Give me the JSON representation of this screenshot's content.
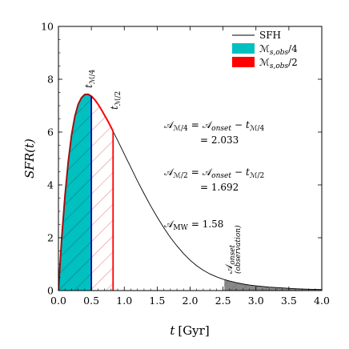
{
  "chart_data": {
    "type": "line",
    "xlabel_math": "t",
    "xlabel_unit": "[Gyr]",
    "ylabel": "SFR(t)",
    "xlim": [
      0.0,
      4.0
    ],
    "ylim": [
      0,
      10
    ],
    "x_ticks": [
      "0.0",
      "0.5",
      "1.0",
      "1.5",
      "2.0",
      "2.5",
      "3.0",
      "3.5",
      "4.0"
    ],
    "y_ticks": [
      "0",
      "2",
      "4",
      "6",
      "8",
      "10"
    ],
    "grid": false,
    "legend_position": "top-right",
    "series": [
      {
        "name": "SFH",
        "color": "#000000",
        "x": [
          0.0,
          0.02,
          0.05,
          0.1,
          0.15,
          0.2,
          0.25,
          0.3,
          0.35,
          0.4,
          0.45,
          0.5,
          0.55,
          0.6,
          0.65,
          0.7,
          0.75,
          0.8,
          0.85,
          0.9,
          1.0,
          1.1,
          1.2,
          1.3,
          1.4,
          1.5,
          1.6,
          1.7,
          1.8,
          1.9,
          2.0,
          2.1,
          2.2,
          2.3,
          2.4,
          2.5,
          2.6,
          2.7,
          2.8,
          2.9,
          3.0,
          3.2,
          3.4,
          3.6,
          3.8,
          4.0
        ],
        "y": [
          0.0,
          0.8,
          2.0,
          3.6,
          4.9,
          5.9,
          6.6,
          7.05,
          7.3,
          7.42,
          7.43,
          7.36,
          7.23,
          7.06,
          6.86,
          6.64,
          6.42,
          6.18,
          5.93,
          5.68,
          5.17,
          4.66,
          4.15,
          3.67,
          3.21,
          2.78,
          2.38,
          2.01,
          1.69,
          1.4,
          1.15,
          0.94,
          0.77,
          0.63,
          0.52,
          0.43,
          0.36,
          0.3,
          0.25,
          0.21,
          0.18,
          0.13,
          0.1,
          0.07,
          0.05,
          0.04
        ]
      }
    ],
    "shaded_regions": [
      {
        "name": "M_{s,obs}/4",
        "x_from": 0.0,
        "x_to": 0.5,
        "fill": "#00c0c0",
        "hatch": true,
        "edge": "#a01010"
      },
      {
        "name": "M_{s,obs}/2",
        "x_from": 0.5,
        "x_to": 0.83,
        "fill": "none",
        "hatch": true,
        "hatch_color": "#e05050",
        "edge": "#ff0000"
      },
      {
        "name": "onset",
        "x_from": 2.52,
        "x_to": 4.0,
        "fill": "#888888",
        "hatch": true
      }
    ],
    "vertical_lines": [
      {
        "x": 0.5,
        "label": "t_{M/4}",
        "color": "#0000cc"
      },
      {
        "x": 0.83,
        "label": "t_{M/2}",
        "color": "#ff0000"
      }
    ],
    "legend": {
      "sfh": "SFH",
      "quarter_base": "ℳ",
      "quarter_sub": "s,obs",
      "quarter_tail": "/4",
      "half_base": "ℳ",
      "half_sub": "s,obs",
      "half_tail": "/2",
      "quarter_color": "#00c0c0",
      "half_color": "#ff0000"
    },
    "annotations": {
      "a_quarter_lhs": "𝒜",
      "a_quarter_lhs_sub": "ℳ/4",
      "a_quarter_eq": "=",
      "a_quarter_rhs1": "𝒜",
      "a_quarter_rhs1_sub": "onset",
      "a_quarter_minus": "−",
      "a_quarter_rhs2": "t",
      "a_quarter_rhs2_sub": "ℳ/4",
      "a_quarter_value": "= 2.033",
      "a_half_lhs": "𝒜",
      "a_half_lhs_sub": "ℳ/2",
      "a_half_eq": "=",
      "a_half_rhs1": "𝒜",
      "a_half_rhs1_sub": "onset",
      "a_half_minus": "−",
      "a_half_rhs2": "t",
      "a_half_rhs2_sub": "ℳ/2",
      "a_half_value": "= 1.692",
      "a_mw": "𝒜",
      "a_mw_sub": "MW",
      "a_mw_value": "= 1.58",
      "tq_label": "t",
      "tq_sub": "ℳ/4",
      "th_label": "t",
      "th_sub": "ℳ/2",
      "onset_label": "𝒜",
      "onset_sub": "onset",
      "onset_paren": "(observation)"
    }
  }
}
